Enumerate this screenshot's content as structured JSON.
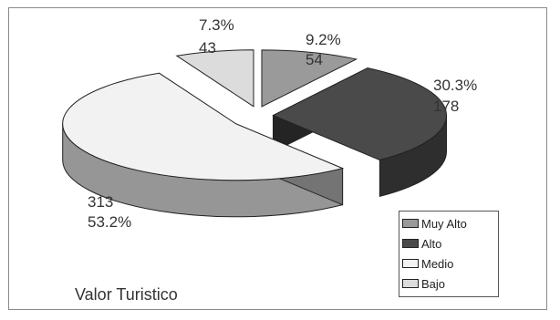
{
  "chart_data": {
    "type": "pie",
    "title": "Valor Turistico",
    "categories": [
      "Muy Alto",
      "Alto",
      "Medio",
      "Bajo"
    ],
    "values": [
      54,
      178,
      313,
      43
    ],
    "percent_labels": [
      "9.2%",
      "30.3%",
      "53.2%",
      "7.3%"
    ],
    "colors": [
      "#9a9a9a",
      "#4a4a4a",
      "#f2f2f2",
      "#dcdcdc"
    ],
    "legend_position": "bottom-right",
    "exploded": true,
    "three_d": true
  }
}
